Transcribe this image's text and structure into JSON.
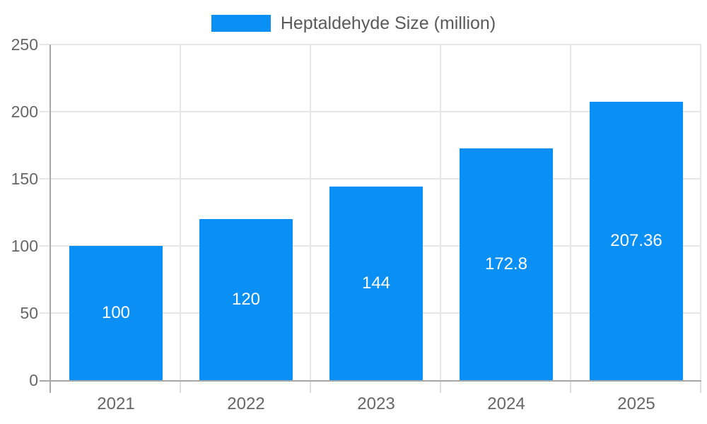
{
  "chart_data": {
    "type": "bar",
    "title": "Heptaldehyde Size (million)",
    "legend": {
      "position": "top-center",
      "label": "Heptaldehyde Size (million)"
    },
    "categories": [
      "2021",
      "2022",
      "2023",
      "2024",
      "2025"
    ],
    "series": [
      {
        "name": "Heptaldehyde Size (million)",
        "values": [
          100,
          120,
          144,
          172.8,
          207.36
        ]
      }
    ],
    "bar_value_labels": [
      "100",
      "120",
      "144",
      "172.8",
      "207.36"
    ],
    "xlabel": "",
    "ylabel": "",
    "ylim": [
      0,
      250
    ],
    "yticks": [
      0,
      50,
      100,
      150,
      200,
      250
    ],
    "grid": true,
    "colors": {
      "bar": "#0a8ff5",
      "grid": "#e6e6e6",
      "axis": "#a8a8a8",
      "category_tick": "#dddddd",
      "tick_label": "#666666",
      "legend_text": "#5a5a5a",
      "bar_label": "#ffffff",
      "background": "#ffffff"
    }
  }
}
